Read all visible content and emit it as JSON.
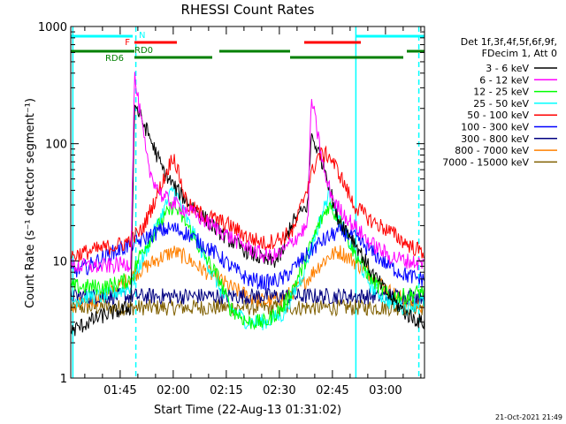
{
  "chart_data": {
    "type": "line",
    "title": "RHESSI Count Rates",
    "xlabel": "Start Time (22-Aug-13 01:31:02)",
    "ylabel": "Count Rate (s⁻¹ detector segment⁻¹)",
    "yscale": "log",
    "ylim": [
      1,
      1000
    ],
    "xlim_minutes_from_start": [
      0,
      100
    ],
    "x_tick_labels": [
      "01:45",
      "02:00",
      "02:15",
      "02:30",
      "02:45",
      "03:00"
    ],
    "x_tick_minutes_from_start": [
      13.97,
      28.97,
      43.97,
      58.97,
      73.97,
      88.97
    ],
    "y_tick_labels": [
      "1",
      "10",
      "100",
      "1000"
    ],
    "y_ticks": [
      1,
      10,
      100,
      1000
    ],
    "legend_header": [
      "Det 1f,3f,4f,5f,6f,9f,",
      "FDecim 1, Att 0"
    ],
    "legend_placement": "right",
    "series": [
      {
        "name": "3 - 6 keV",
        "color": "#000000",
        "x": [
          0,
          5,
          10,
          17,
          18,
          22,
          26,
          30,
          35,
          40,
          45,
          50,
          55,
          58,
          60,
          62,
          67,
          68,
          72,
          75,
          80,
          85,
          90,
          95,
          99
        ],
        "y": [
          2.5,
          3.0,
          3.5,
          4.0,
          220,
          120,
          60,
          40,
          28,
          20,
          15,
          12,
          10,
          10,
          12,
          20,
          30,
          120,
          60,
          25,
          15,
          8,
          5,
          3.5,
          3.0
        ]
      },
      {
        "name": "6 - 12 keV",
        "color": "#ff00ff",
        "x": [
          0,
          5,
          10,
          17,
          18,
          22,
          26,
          30,
          35,
          40,
          45,
          50,
          55,
          58,
          60,
          62,
          67,
          68,
          72,
          75,
          80,
          85,
          90,
          95,
          99
        ],
        "y": [
          9,
          9,
          9,
          9.5,
          380,
          60,
          35,
          30,
          25,
          20,
          16,
          13,
          11,
          11,
          12,
          14,
          20,
          250,
          50,
          30,
          20,
          14,
          11,
          10,
          9.5
        ]
      },
      {
        "name": "12 - 25 keV",
        "color": "#00ff00",
        "x": [
          0,
          5,
          10,
          17,
          20,
          25,
          29,
          33,
          37,
          42,
          45,
          50,
          55,
          60,
          65,
          70,
          73,
          76,
          80,
          85,
          90,
          95,
          99
        ],
        "y": [
          6,
          6,
          6,
          7,
          12,
          20,
          30,
          20,
          12,
          7,
          4,
          3,
          3,
          4,
          8,
          20,
          30,
          22,
          12,
          7,
          5,
          5,
          5.5
        ]
      },
      {
        "name": "25 - 50 keV",
        "color": "#00ffff",
        "x": [
          0,
          5,
          10,
          17,
          20,
          25,
          29,
          33,
          37,
          42,
          45,
          50,
          55,
          60,
          65,
          70,
          73,
          76,
          80,
          85,
          90,
          95,
          99
        ],
        "y": [
          4.5,
          5,
          5,
          6,
          10,
          22,
          42,
          22,
          12,
          6,
          4,
          3,
          3,
          3.5,
          7,
          20,
          38,
          22,
          12,
          6,
          4.5,
          4,
          4.5
        ]
      },
      {
        "name": "50 - 100 keV",
        "color": "#ff0000",
        "x": [
          0,
          5,
          10,
          15,
          20,
          25,
          29,
          33,
          37,
          42,
          45,
          50,
          55,
          60,
          63,
          67,
          70,
          73,
          76,
          80,
          85,
          90,
          95,
          99
        ],
        "y": [
          11,
          12,
          13,
          14,
          18,
          40,
          80,
          30,
          25,
          22,
          20,
          16,
          14,
          16,
          18,
          45,
          80,
          80,
          55,
          30,
          22,
          18,
          14,
          12
        ]
      },
      {
        "name": "100 - 300 keV",
        "color": "#0000ff",
        "x": [
          0,
          5,
          10,
          15,
          20,
          25,
          29,
          33,
          37,
          42,
          45,
          50,
          55,
          60,
          65,
          70,
          73,
          76,
          80,
          85,
          90,
          95,
          99
        ],
        "y": [
          8,
          9,
          11,
          13,
          15,
          18,
          19,
          17,
          14,
          11,
          9,
          7,
          6.5,
          7,
          10,
          14,
          16,
          18,
          16,
          12,
          9,
          7.5,
          7
        ]
      },
      {
        "name": "300 - 800 keV",
        "color": "#000080",
        "x": [
          0,
          10,
          20,
          30,
          40,
          50,
          60,
          70,
          80,
          90,
          99
        ],
        "y": [
          5,
          5,
          5,
          5,
          5,
          5,
          5,
          5,
          5,
          5,
          5
        ]
      },
      {
        "name": "800 - 7000 keV",
        "color": "#ff8000",
        "x": [
          0,
          5,
          10,
          15,
          20,
          25,
          29,
          33,
          37,
          42,
          45,
          50,
          55,
          60,
          65,
          70,
          73,
          76,
          80,
          85,
          90,
          95,
          99
        ],
        "y": [
          4,
          4.5,
          5,
          6.5,
          8.5,
          10.5,
          12,
          10.5,
          8.5,
          7,
          6,
          5,
          4.5,
          4.8,
          6,
          9,
          11,
          12,
          10,
          7.5,
          5.5,
          4.5,
          4.2
        ]
      },
      {
        "name": "7000 - 15000 keV",
        "color": "#806000",
        "x": [
          0,
          10,
          20,
          30,
          40,
          50,
          60,
          70,
          80,
          90,
          99
        ],
        "y": [
          4,
          4,
          4,
          4,
          4,
          4,
          4,
          4,
          4,
          4,
          4
        ]
      }
    ],
    "flag_bars": [
      {
        "label": "N",
        "color": "#00ffff",
        "segments": [
          [
            0,
            17.5
          ],
          [
            80.5,
            100
          ]
        ]
      },
      {
        "label": "F",
        "color": "#ff0000",
        "segments": [
          [
            18,
            30
          ],
          [
            66,
            82
          ]
        ]
      },
      {
        "label": "RD0",
        "color": "#008000",
        "segments": [
          [
            0,
            18
          ],
          [
            42,
            62
          ],
          [
            95,
            100
          ]
        ]
      },
      {
        "label": "RD6",
        "color": "#008000",
        "segments": [
          [
            18,
            40
          ],
          [
            62,
            94
          ]
        ]
      }
    ],
    "vertical_markers": [
      {
        "x": 0.6,
        "style": "solid",
        "color": "#00ffff"
      },
      {
        "x": 18.4,
        "style": "dashed",
        "color": "#00ffff"
      },
      {
        "x": 80.6,
        "style": "solid",
        "color": "#00ffff"
      },
      {
        "x": 98.4,
        "style": "dashed",
        "color": "#00ffff"
      }
    ]
  },
  "footer": {
    "timestamp": "21-Oct-2021 21:49"
  }
}
